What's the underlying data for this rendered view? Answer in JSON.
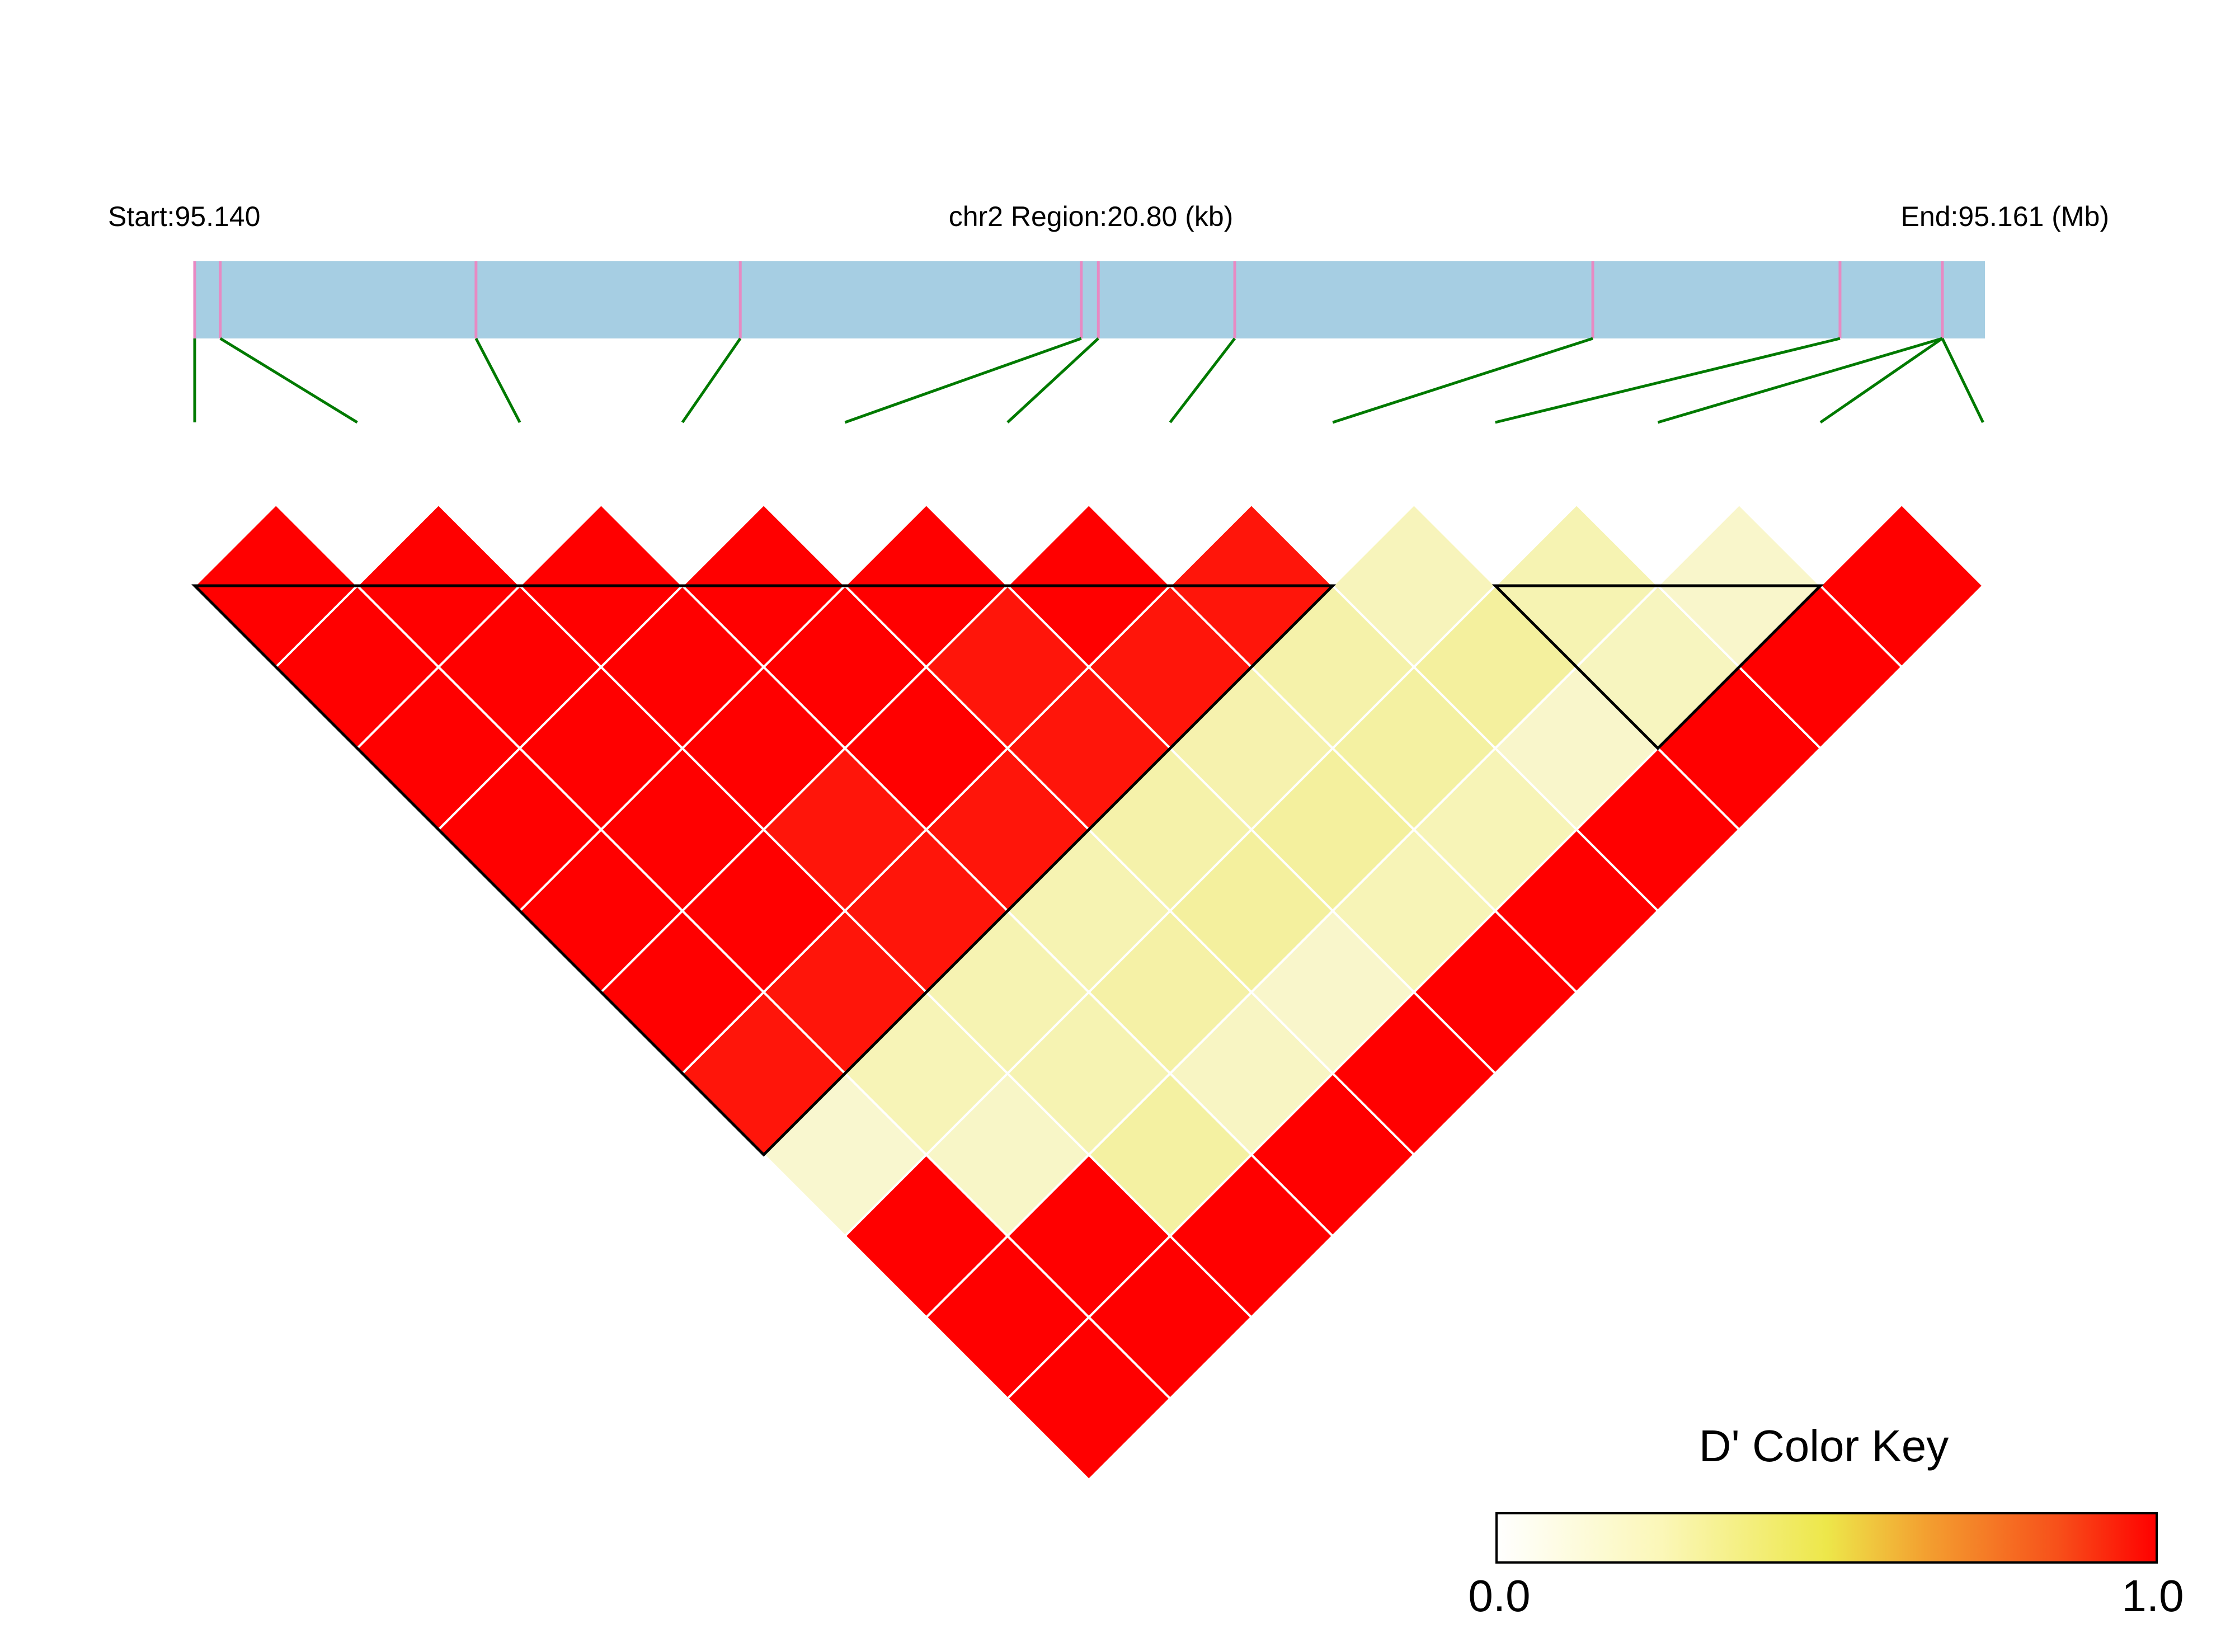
{
  "header": {
    "start_label": "Start:95.140",
    "region_label": "chr2 Region:20.80 (kb)",
    "end_label": "End:95.161 (Mb)"
  },
  "legend": {
    "title": "D' Color Key",
    "min_label": "0.0",
    "max_label": "1.0",
    "placement": "bottom-right"
  },
  "colors": {
    "region_bar": "#a6cee3",
    "snp_tick": "#e78ac3",
    "connector": "#007a00",
    "cell_high": "#ff0000",
    "cell_low": "#ffffe0",
    "block_outline": "#000000",
    "cell_border": "#ffffff"
  },
  "chart_data": {
    "type": "heatmap",
    "subtype": "LD triangle (D')",
    "chromosome": "chr2",
    "region_start_mb": 95.14,
    "region_end_mb": 95.161,
    "region_length_kb": 20.8,
    "snp_count": 12,
    "snp_positions_mb": [
      95.14,
      95.1403,
      95.1433,
      95.1464,
      95.1504,
      95.1506,
      95.1522,
      95.1564,
      95.1593,
      95.1605,
      95.1605,
      95.1605
    ],
    "dprime_rows": [
      [
        1.0,
        1.0,
        1.0,
        1.0,
        1.0,
        1.0,
        0.95,
        0.08,
        1.0,
        1.0,
        1.0
      ],
      [
        1.0,
        1.0,
        1.0,
        1.0,
        1.0,
        0.97,
        0.2,
        0.12,
        1.0,
        1.0
      ],
      [
        1.0,
        1.0,
        1.0,
        0.98,
        0.94,
        0.22,
        0.22,
        0.3,
        1.0
      ],
      [
        1.0,
        1.0,
        0.99,
        0.98,
        0.22,
        0.28,
        0.14,
        1.0
      ],
      [
        1.0,
        0.98,
        0.98,
        0.26,
        0.32,
        0.1,
        1.0
      ],
      [
        1.0,
        0.98,
        0.24,
        0.32,
        0.2,
        1.0
      ],
      [
        0.97,
        0.26,
        0.3,
        0.2,
        1.0
      ],
      [
        0.18,
        0.32,
        0.1,
        1.0
      ],
      [
        0.22,
        0.16,
        1.0
      ],
      [
        0.1,
        1.0
      ],
      [
        1.0
      ]
    ],
    "ld_blocks": [
      {
        "first_snp": 1,
        "last_snp": 8
      },
      {
        "first_snp": 9,
        "last_snp": 11
      }
    ],
    "color_scale": {
      "min": 0.0,
      "max": 1.0
    }
  }
}
